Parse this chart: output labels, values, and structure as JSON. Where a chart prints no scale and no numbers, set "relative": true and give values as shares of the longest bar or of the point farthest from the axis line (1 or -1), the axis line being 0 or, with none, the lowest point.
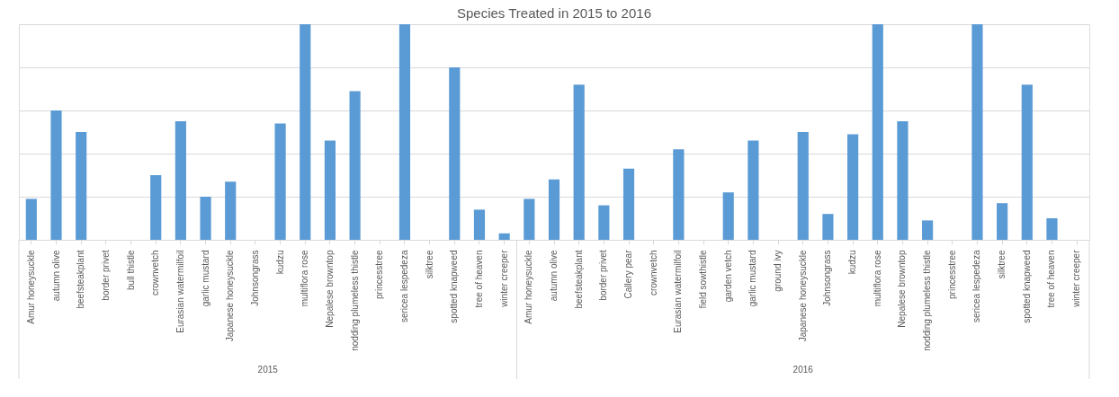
{
  "chart_data": {
    "type": "bar",
    "title": "Species Treated in 2015 to 2016",
    "relative": true,
    "grid": "y",
    "categories": [
      "Amur honeysuckle",
      "autumn olive",
      "beefsteakplant",
      "border privet",
      "bull thistle",
      "crownvetch",
      "Eurasian watermilfoil",
      "garlic mustard",
      "Japanese honeysuckle",
      "Johnsongrass",
      "kudzu",
      "multiflora rose",
      "Nepalese browntop",
      "nodding plumeless thistle",
      "princesstree",
      "sericea lespedeza",
      "silktree",
      "spotted knapweed",
      "tree of heaven",
      "winter creeper",
      "Amur honeysuckle",
      "autumn olive",
      "beefsteakplant",
      "border privet",
      "Callery pear",
      "crownvetch",
      "Eurasian watermilfoil",
      "field sowthistle",
      "garden vetch",
      "garlic mustard",
      "ground ivy",
      "Japanese honeysuckle",
      "Johnsongrass",
      "kudzu",
      "multiflora rose",
      "Nepalese browntop",
      "nodding plumeless thistle",
      "princesstree",
      "sericea lespedeza",
      "silktree",
      "spotted knapweed",
      "tree of heaven",
      "winter creeper"
    ],
    "series": [
      {
        "color": "#5b9bd5",
        "values": [
          0.19,
          0.6,
          0.5,
          0,
          0,
          0.3,
          0.55,
          0.2,
          0.27,
          0,
          0.54,
          1,
          0.46,
          0.69,
          0,
          1,
          0,
          0.8,
          0.14,
          0.03,
          0.19,
          0.28,
          0.72,
          0.16,
          0.33,
          0,
          0.42,
          0,
          0.22,
          0.46,
          0,
          0.5,
          0.12,
          0.49,
          1,
          0.55,
          0.09,
          0,
          1,
          0.17,
          0.72,
          0.1,
          0
        ]
      }
    ],
    "annotations": [
      "2015",
      "2016"
    ]
  }
}
